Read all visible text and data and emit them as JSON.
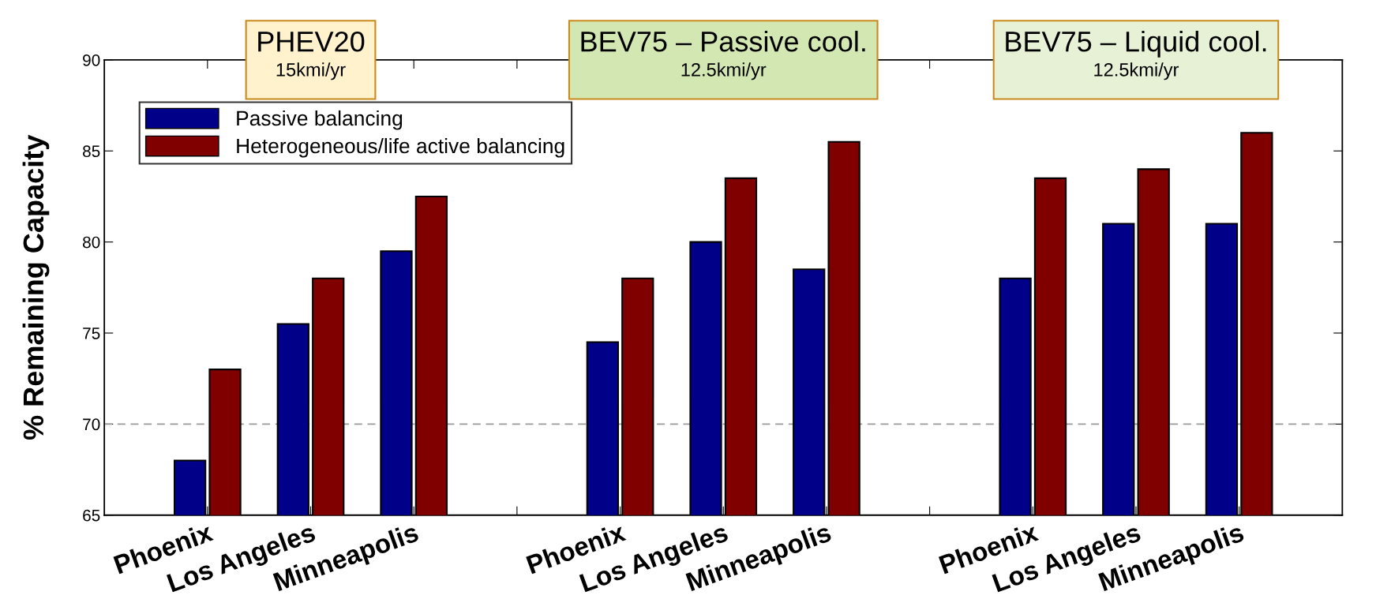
{
  "chart_data": {
    "type": "bar",
    "ylabel": "% Remaining Capacity",
    "categories": [
      "Phoenix",
      "Los Angeles",
      "Minneapolis",
      null,
      "Phoenix",
      "Los Angeles",
      "Minneapolis",
      null,
      "Phoenix",
      "Los Angeles",
      "Minneapolis"
    ],
    "series": [
      {
        "name": "Passive balancing",
        "color": "#000088",
        "values": [
          68,
          75.5,
          79.5,
          null,
          74.5,
          80,
          78.5,
          null,
          78,
          81,
          81
        ]
      },
      {
        "name": "Heterogeneous/life active balancing",
        "color": "#800000",
        "values": [
          73,
          78,
          82.5,
          null,
          78,
          83.5,
          85.5,
          null,
          83.5,
          84,
          86
        ]
      }
    ],
    "ylim": [
      65,
      90
    ],
    "yticks": [
      65,
      70,
      75,
      80,
      85,
      90
    ],
    "ref_lines": [
      {
        "axis": "y",
        "value": 70,
        "color": "#999999",
        "line_style": "dashed"
      }
    ],
    "annotations": [
      "PHEV20",
      "15kmi/yr",
      "BEV75 – Passive cool.",
      "12.5kmi/yr",
      "BEV75 – Liquid cool.",
      "12.5kmi/yr"
    ],
    "legend": "top left",
    "grid": false
  }
}
